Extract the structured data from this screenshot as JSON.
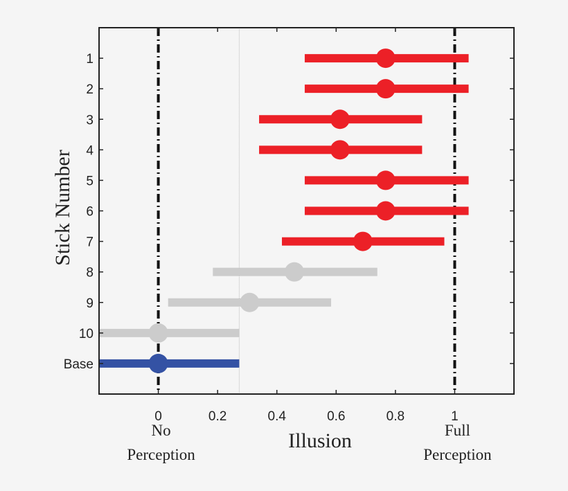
{
  "chart_data": {
    "type": "errorbar",
    "orientation": "horizontal",
    "xlabel": "Illusion",
    "ylabel": "Stick Number",
    "xlim": [
      -0.2,
      1.2
    ],
    "ylim": [
      0,
      12
    ],
    "xticks": [
      "0",
      "0.2",
      "0.4",
      "0.6",
      "0.8",
      "1"
    ],
    "xtick_values": [
      0,
      0.2,
      0.4,
      0.6,
      0.8,
      1
    ],
    "x_annotations": [
      {
        "x": 0,
        "lines": [
          "No",
          "Perception"
        ]
      },
      {
        "x": 1,
        "lines": [
          "Full",
          "Perception"
        ]
      }
    ],
    "reference_lines": [
      {
        "x": 0,
        "style": "dash-dot",
        "color": "#111111"
      },
      {
        "x": 1,
        "style": "dash-dot",
        "color": "#111111"
      },
      {
        "x": 0.273,
        "style": "dotted",
        "color": "#bbbbbb"
      }
    ],
    "grid": false,
    "categories": [
      "1",
      "2",
      "3",
      "4",
      "5",
      "6",
      "7",
      "8",
      "9",
      "10",
      "Base"
    ],
    "points": [
      {
        "label": "1",
        "value": 0.767,
        "low": 0.494,
        "high": 1.047,
        "color": "#ec2027"
      },
      {
        "label": "2",
        "value": 0.767,
        "low": 0.494,
        "high": 1.047,
        "color": "#ec2027"
      },
      {
        "label": "3",
        "value": 0.613,
        "low": 0.34,
        "high": 0.89,
        "color": "#ec2027"
      },
      {
        "label": "4",
        "value": 0.613,
        "low": 0.34,
        "high": 0.89,
        "color": "#ec2027"
      },
      {
        "label": "5",
        "value": 0.767,
        "low": 0.494,
        "high": 1.047,
        "color": "#ec2027"
      },
      {
        "label": "6",
        "value": 0.767,
        "low": 0.494,
        "high": 1.047,
        "color": "#ec2027"
      },
      {
        "label": "7",
        "value": 0.69,
        "low": 0.417,
        "high": 0.965,
        "color": "#ec2027"
      },
      {
        "label": "8",
        "value": 0.459,
        "low": 0.184,
        "high": 0.739,
        "color": "#cccccc"
      },
      {
        "label": "9",
        "value": 0.308,
        "low": 0.033,
        "high": 0.583,
        "color": "#cccccc"
      },
      {
        "label": "10",
        "value": 0.0,
        "low": -0.273,
        "high": 0.273,
        "color": "#cccccc"
      },
      {
        "label": "Base",
        "value": 0.0,
        "low": -0.273,
        "high": 0.273,
        "color": "#3452a4"
      }
    ]
  }
}
